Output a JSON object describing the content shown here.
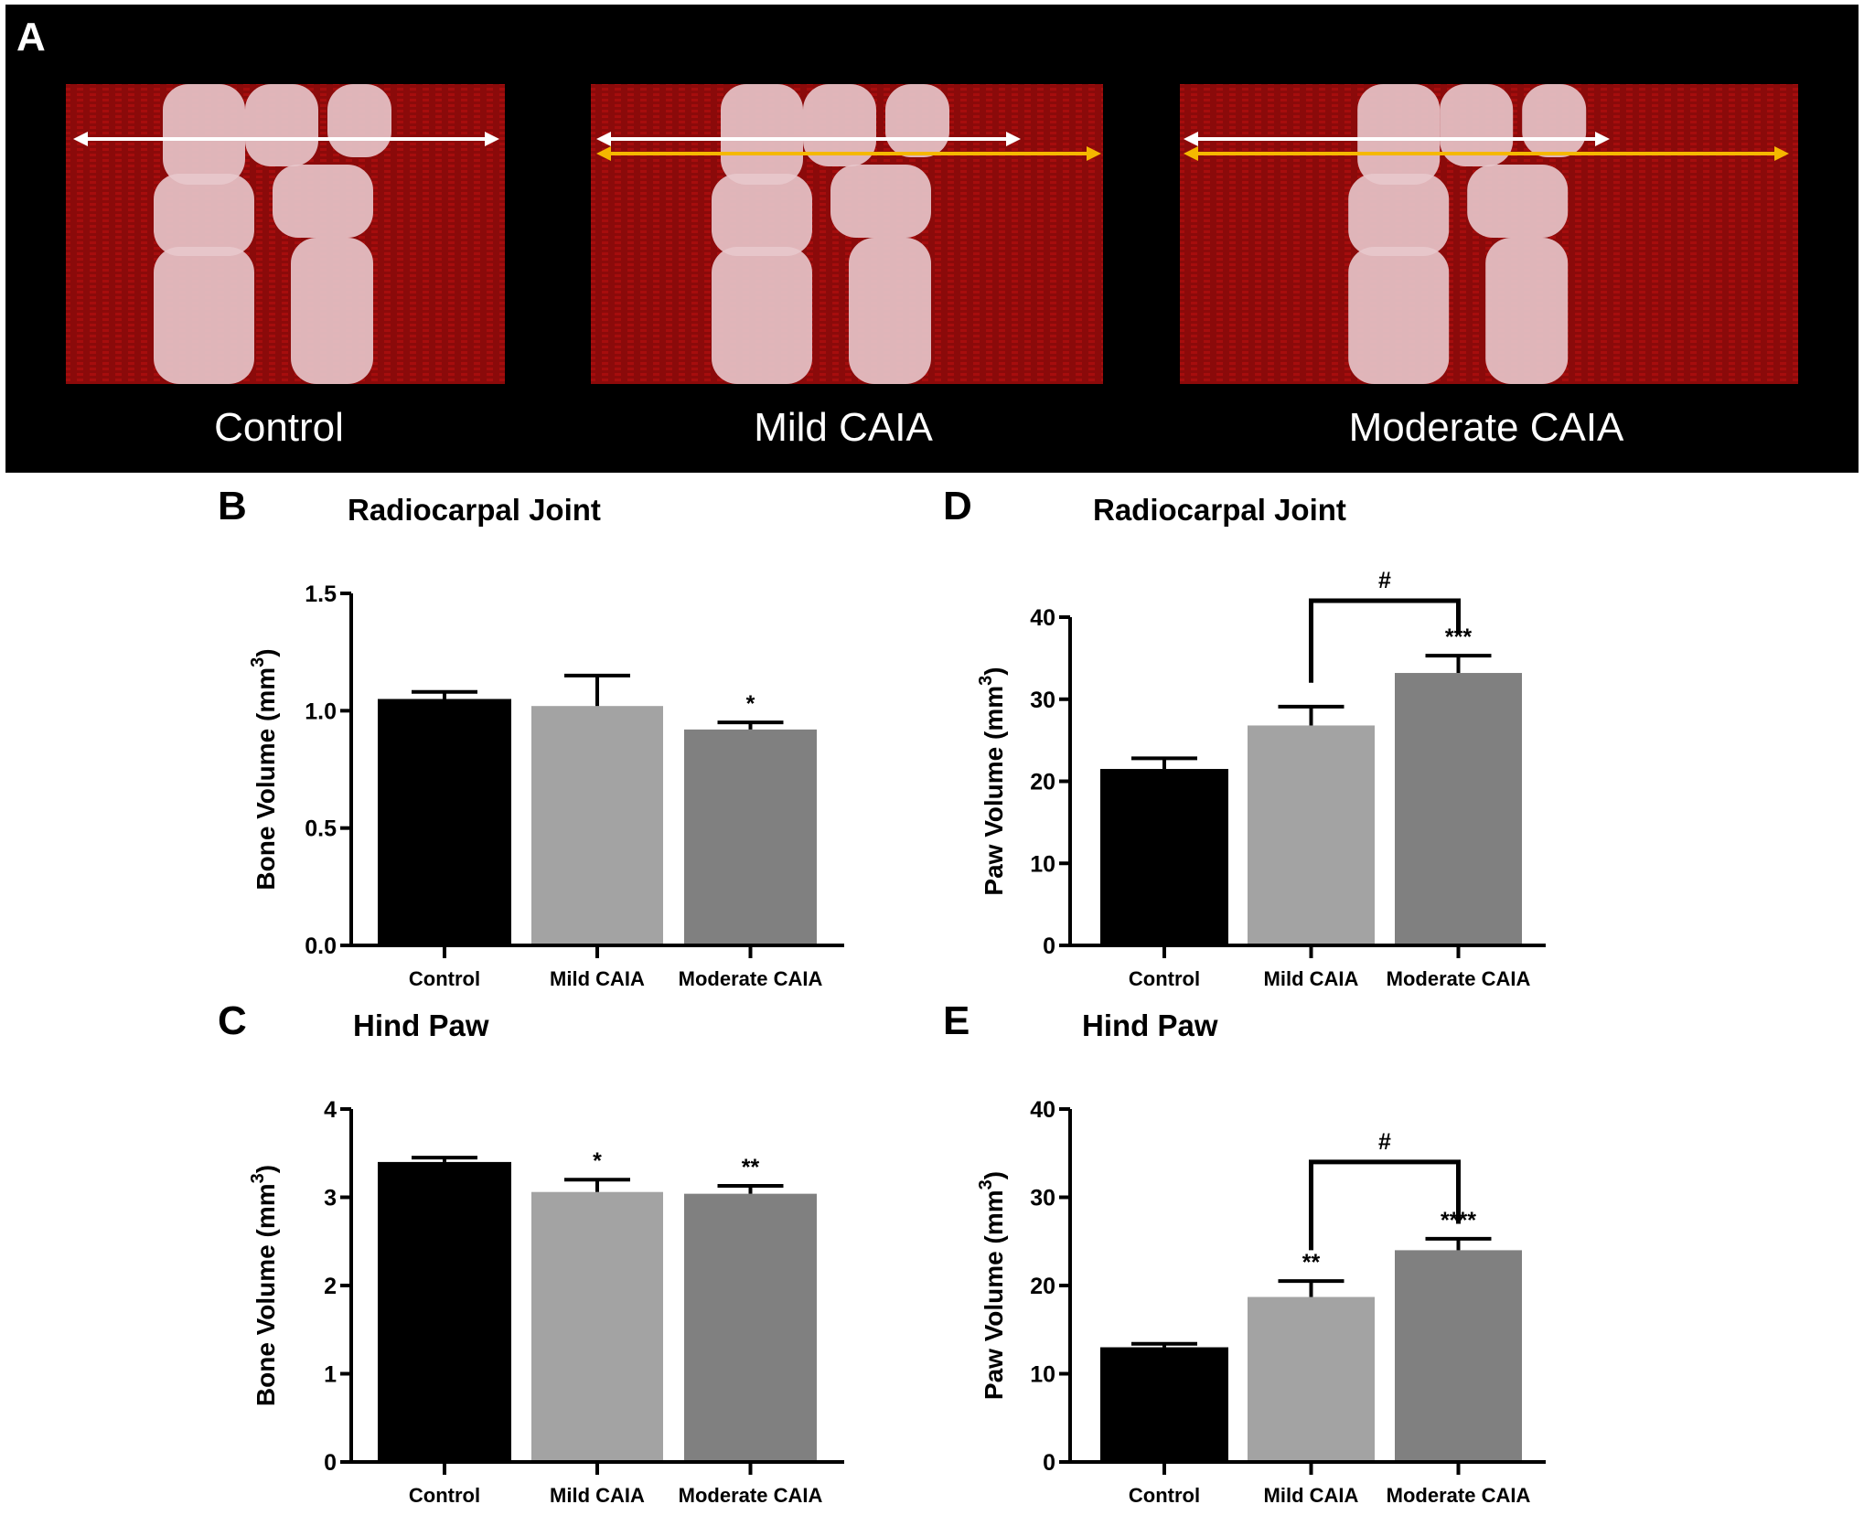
{
  "panel_a": {
    "label": "A",
    "images": [
      {
        "caption": "Control",
        "arrows": [
          "white"
        ]
      },
      {
        "caption": "Mild CAIA",
        "arrows": [
          "white",
          "yellow"
        ]
      },
      {
        "caption": "Moderate CAIA",
        "arrows": [
          "white",
          "yellow"
        ]
      }
    ],
    "colors": {
      "background": "#000000",
      "tissue": "#8b0a0a",
      "bone": "#e8c8cc",
      "white_arrow": "#ffffff",
      "yellow_arrow": "#f5b800"
    }
  },
  "chart_data": [
    {
      "panel": "B",
      "type": "bar",
      "title": "Radiocarpal Joint",
      "ylabel": "Bone Volume (mm",
      "ylabel_sup": "3",
      "ylabel_end": ")",
      "categories": [
        "Control",
        "Mild CAIA",
        "Moderate CAIA"
      ],
      "values": [
        1.05,
        1.02,
        0.92
      ],
      "error_upper": [
        1.08,
        1.15,
        0.95
      ],
      "ylim": [
        0,
        1.5
      ],
      "yticks": [
        "0.0",
        "0.5",
        "1.0",
        "1.5"
      ],
      "ytick_values": [
        0,
        0.5,
        1.0,
        1.5
      ],
      "annotations": [
        "",
        "",
        "*"
      ],
      "bracket": null,
      "colors": [
        "#000000",
        "#a3a3a3",
        "#808080"
      ]
    },
    {
      "panel": "C",
      "type": "bar",
      "title": "Hind Paw",
      "ylabel": "Bone Volume (mm",
      "ylabel_sup": "3",
      "ylabel_end": ")",
      "categories": [
        "Control",
        "Mild CAIA",
        "Moderate CAIA"
      ],
      "values": [
        3.4,
        3.06,
        3.04
      ],
      "error_upper": [
        3.45,
        3.2,
        3.13
      ],
      "ylim": [
        0,
        4
      ],
      "yticks": [
        "0",
        "1",
        "2",
        "3",
        "4"
      ],
      "ytick_values": [
        0,
        1,
        2,
        3,
        4
      ],
      "annotations": [
        "",
        "*",
        "**"
      ],
      "bracket": null,
      "colors": [
        "#000000",
        "#a3a3a3",
        "#808080"
      ]
    },
    {
      "panel": "D",
      "type": "bar",
      "title": "Radiocarpal Joint",
      "ylabel": "Paw Volume (mm",
      "ylabel_sup": "3",
      "ylabel_end": ")",
      "categories": [
        "Control",
        "Mild CAIA",
        "Moderate CAIA"
      ],
      "values": [
        21.5,
        26.8,
        33.2
      ],
      "error_upper": [
        22.8,
        29.1,
        35.3
      ],
      "ylim": [
        0,
        40
      ],
      "yticks": [
        "0",
        "10",
        "20",
        "30",
        "40"
      ],
      "ytick_values": [
        0,
        10,
        20,
        30,
        40
      ],
      "annotations": [
        "",
        "",
        "***"
      ],
      "bracket": {
        "from": 1,
        "to": 2,
        "label": "#",
        "level": 42,
        "left_end": 32,
        "right_end": 38
      },
      "colors": [
        "#000000",
        "#a3a3a3",
        "#808080"
      ]
    },
    {
      "panel": "E",
      "type": "bar",
      "title": "Hind Paw",
      "ylabel": "Paw Volume (mm",
      "ylabel_sup": "3",
      "ylabel_end": ")",
      "categories": [
        "Control",
        "Mild CAIA",
        "Moderate CAIA"
      ],
      "values": [
        13.0,
        18.7,
        24.0
      ],
      "error_upper": [
        13.4,
        20.5,
        25.3
      ],
      "ylim": [
        0,
        40
      ],
      "yticks": [
        "0",
        "10",
        "20",
        "30",
        "40"
      ],
      "ytick_values": [
        0,
        10,
        20,
        30,
        40
      ],
      "annotations": [
        "",
        "**",
        "****"
      ],
      "bracket": {
        "from": 1,
        "to": 2,
        "label": "#",
        "level": 34,
        "left_end": 24,
        "right_end": 27
      },
      "colors": [
        "#000000",
        "#a3a3a3",
        "#808080"
      ]
    }
  ]
}
